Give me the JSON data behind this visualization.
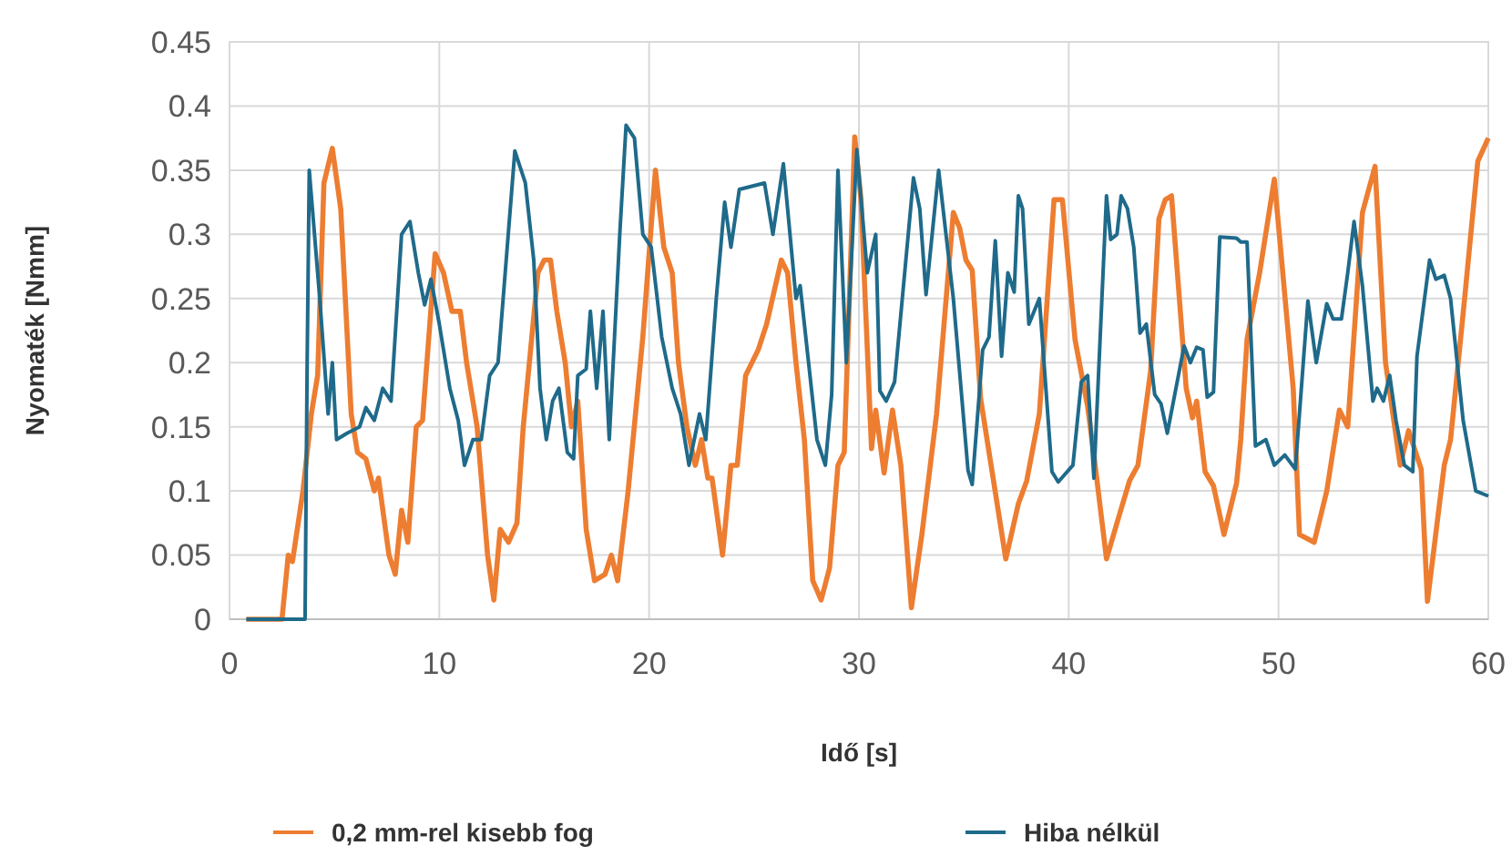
{
  "chart_data": {
    "type": "line",
    "xlabel": "Idő [s]",
    "ylabel": "Nyomaték [Nmm]",
    "xlim": [
      0,
      60
    ],
    "xticks": [
      0,
      10,
      20,
      30,
      40,
      50,
      60
    ],
    "ylim": [
      0,
      0.45
    ],
    "yticks": [
      0,
      0.05,
      0.1,
      0.15,
      0.2,
      0.25,
      0.3,
      0.35,
      0.4,
      0.45
    ],
    "grid": true,
    "legend": "bottom",
    "marker": "none",
    "line_style": "solid",
    "series": [
      {
        "name": "0,2 mm-rel kisebb fog",
        "color": "#ed7d31",
        "x": [
          0.8,
          2.5,
          2.8,
          3.0,
          3.5,
          3.9,
          4.2,
          4.5,
          4.9,
          5.3,
          5.8,
          6.1,
          6.5,
          6.9,
          7.1,
          7.6,
          7.9,
          8.2,
          8.5,
          8.9,
          9.2,
          9.8,
          10.2,
          10.6,
          11.0,
          11.3,
          11.8,
          12.3,
          12.6,
          12.9,
          13.3,
          13.7,
          14.0,
          14.7,
          15.0,
          15.3,
          15.6,
          16.0,
          16.3,
          16.6,
          17.0,
          17.4,
          17.9,
          18.2,
          18.5,
          19.0,
          19.7,
          20.3,
          20.7,
          21.1,
          21.4,
          21.8,
          22.2,
          22.5,
          22.8,
          23.0,
          23.5,
          23.9,
          24.2,
          24.6,
          25.2,
          25.6,
          26.3,
          26.6,
          27.0,
          27.4,
          27.8,
          28.2,
          28.6,
          29.0,
          29.3,
          29.8,
          30.1,
          30.6,
          30.8,
          31.2,
          31.6,
          32.0,
          32.5,
          33.0,
          33.7,
          34.5,
          34.8,
          35.1,
          35.4,
          35.8,
          37.0,
          37.6,
          38.0,
          38.6,
          39.3,
          39.7,
          40.3,
          40.9,
          41.2,
          41.8,
          42.3,
          42.9,
          43.3,
          43.9,
          44.3,
          44.6,
          44.9,
          45.6,
          45.9,
          46.1,
          46.5,
          46.9,
          47.4,
          48.0,
          48.2,
          48.5,
          49.1,
          49.8,
          50.7,
          51.0,
          51.7,
          52.3,
          52.9,
          53.3,
          54.0,
          54.6,
          55.1,
          55.8,
          56.2,
          56.8,
          57.1,
          57.9,
          58.2,
          58.9,
          59.5,
          60.0
        ],
        "values": [
          0,
          0,
          0.05,
          0.045,
          0.1,
          0.16,
          0.19,
          0.34,
          0.367,
          0.32,
          0.16,
          0.13,
          0.125,
          0.1,
          0.11,
          0.05,
          0.035,
          0.085,
          0.06,
          0.15,
          0.155,
          0.285,
          0.27,
          0.24,
          0.24,
          0.2,
          0.15,
          0.05,
          0.015,
          0.07,
          0.06,
          0.075,
          0.15,
          0.27,
          0.28,
          0.28,
          0.24,
          0.2,
          0.15,
          0.17,
          0.07,
          0.03,
          0.035,
          0.05,
          0.03,
          0.1,
          0.22,
          0.35,
          0.29,
          0.27,
          0.2,
          0.15,
          0.12,
          0.14,
          0.11,
          0.11,
          0.05,
          0.12,
          0.12,
          0.19,
          0.21,
          0.23,
          0.28,
          0.27,
          0.2,
          0.14,
          0.03,
          0.015,
          0.04,
          0.12,
          0.13,
          0.376,
          0.327,
          0.133,
          0.163,
          0.114,
          0.163,
          0.12,
          0.009,
          0.066,
          0.16,
          0.317,
          0.305,
          0.28,
          0.272,
          0.172,
          0.047,
          0.09,
          0.108,
          0.16,
          0.327,
          0.327,
          0.218,
          0.166,
          0.128,
          0.047,
          0.075,
          0.108,
          0.12,
          0.193,
          0.312,
          0.327,
          0.33,
          0.18,
          0.157,
          0.17,
          0.115,
          0.104,
          0.066,
          0.106,
          0.14,
          0.218,
          0.27,
          0.343,
          0.18,
          0.066,
          0.06,
          0.1,
          0.163,
          0.15,
          0.317,
          0.353,
          0.2,
          0.12,
          0.147,
          0.117,
          0.014,
          0.12,
          0.14,
          0.255,
          0.357,
          0.375
        ]
      },
      {
        "name": "Hiba nélkül",
        "color": "#1f6a8a",
        "x": [
          0.8,
          3.6,
          3.7,
          3.8,
          4.3,
          4.7,
          4.9,
          5.1,
          5.6,
          6.2,
          6.5,
          6.9,
          7.3,
          7.7,
          8.2,
          8.6,
          9.0,
          9.3,
          9.6,
          10.0,
          10.5,
          10.9,
          11.2,
          11.6,
          12.0,
          12.4,
          12.8,
          13.6,
          14.1,
          14.5,
          14.8,
          15.1,
          15.4,
          15.7,
          16.1,
          16.4,
          16.6,
          17.0,
          17.2,
          17.5,
          17.8,
          18.1,
          18.6,
          18.9,
          19.3,
          19.7,
          20.1,
          20.6,
          21.1,
          21.5,
          21.9,
          22.4,
          22.7,
          23.2,
          23.6,
          23.9,
          24.3,
          25.5,
          25.9,
          26.4,
          27.0,
          27.2,
          27.6,
          28.0,
          28.4,
          28.7,
          29.0,
          29.4,
          29.9,
          30.4,
          30.8,
          31.0,
          31.3,
          31.7,
          32.6,
          32.9,
          33.2,
          33.8,
          34.5,
          35.2,
          35.4,
          35.9,
          36.2,
          36.5,
          36.8,
          37.1,
          37.4,
          37.6,
          37.8,
          38.1,
          38.6,
          39.2,
          39.5,
          40.2,
          40.6,
          40.9,
          41.2,
          41.8,
          42.0,
          42.3,
          42.5,
          42.8,
          43.1,
          43.4,
          43.7,
          44.1,
          44.4,
          44.7,
          45.5,
          45.8,
          46.1,
          46.4,
          46.6,
          46.9,
          47.2,
          48.0,
          48.2,
          48.5,
          48.9,
          49.4,
          49.8,
          50.3,
          50.8,
          51.4,
          51.8,
          52.3,
          52.6,
          53.0,
          53.3,
          53.6,
          54.0,
          54.5,
          54.7,
          55.0,
          55.3,
          55.6,
          56.0,
          56.4,
          56.6,
          57.2,
          57.5,
          57.9,
          58.2,
          58.8,
          59.4,
          60.0
        ],
        "values": [
          0,
          0,
          0.2,
          0.35,
          0.25,
          0.16,
          0.2,
          0.14,
          0.145,
          0.15,
          0.165,
          0.155,
          0.18,
          0.17,
          0.3,
          0.31,
          0.27,
          0.245,
          0.265,
          0.23,
          0.18,
          0.155,
          0.12,
          0.14,
          0.14,
          0.19,
          0.2,
          0.365,
          0.34,
          0.28,
          0.18,
          0.14,
          0.17,
          0.18,
          0.13,
          0.125,
          0.19,
          0.195,
          0.24,
          0.18,
          0.24,
          0.14,
          0.3,
          0.385,
          0.375,
          0.3,
          0.29,
          0.22,
          0.18,
          0.16,
          0.12,
          0.16,
          0.14,
          0.25,
          0.325,
          0.29,
          0.335,
          0.34,
          0.3,
          0.355,
          0.25,
          0.26,
          0.2,
          0.14,
          0.12,
          0.175,
          0.35,
          0.2,
          0.366,
          0.27,
          0.3,
          0.178,
          0.17,
          0.185,
          0.344,
          0.32,
          0.253,
          0.35,
          0.25,
          0.116,
          0.105,
          0.21,
          0.22,
          0.295,
          0.205,
          0.27,
          0.255,
          0.33,
          0.32,
          0.23,
          0.25,
          0.115,
          0.107,
          0.12,
          0.185,
          0.19,
          0.11,
          0.33,
          0.296,
          0.3,
          0.33,
          0.32,
          0.29,
          0.223,
          0.23,
          0.175,
          0.168,
          0.145,
          0.213,
          0.2,
          0.212,
          0.21,
          0.173,
          0.177,
          0.298,
          0.297,
          0.294,
          0.294,
          0.135,
          0.14,
          0.12,
          0.128,
          0.117,
          0.248,
          0.2,
          0.246,
          0.234,
          0.234,
          0.27,
          0.31,
          0.26,
          0.17,
          0.18,
          0.17,
          0.19,
          0.155,
          0.12,
          0.115,
          0.205,
          0.28,
          0.265,
          0.268,
          0.25,
          0.155,
          0.1,
          0.096
        ]
      }
    ]
  }
}
